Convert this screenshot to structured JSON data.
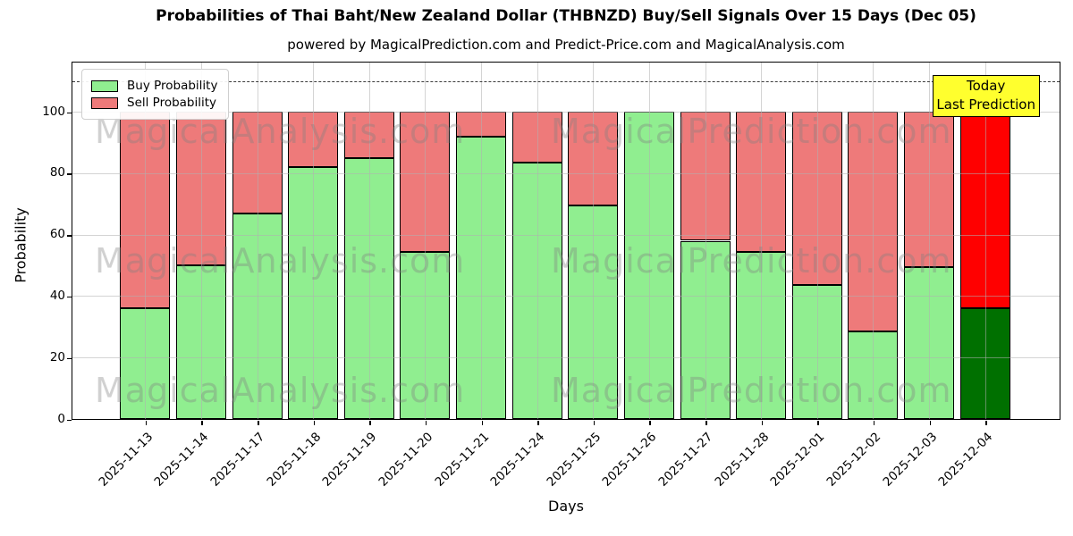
{
  "title": "Probabilities of Thai Baht/New Zealand Dollar (THBNZD) Buy/Sell Signals Over 15 Days (Dec 05)",
  "subtitle": "powered by MagicalPrediction.com and Predict-Price.com and MagicalAnalysis.com",
  "legend": {
    "buy_label": "Buy Probability",
    "sell_label": "Sell Probability"
  },
  "annotation": {
    "line1": "Today",
    "line2": "Last Prediction",
    "bg_color": "#ffff2e"
  },
  "watermarks": {
    "left": "MagicalAnalysis.com",
    "right": "MagicalPrediction.com"
  },
  "colors": {
    "buy_fill": "#90ee90",
    "sell_fill": "#ee7a7a",
    "last_buy_fill": "#007000",
    "last_sell_fill": "#ff0000",
    "bar_edge": "#000000",
    "overlap_strip": "#f59000"
  },
  "chart_data": {
    "type": "bar",
    "stacked": true,
    "title": "Probabilities of Thai Baht/New Zealand Dollar (THBNZD) Buy/Sell Signals Over 15 Days (Dec 05)",
    "xlabel": "Days",
    "ylabel": "Probability",
    "ylim": [
      0,
      116
    ],
    "yticks": [
      0,
      20,
      40,
      60,
      80,
      100
    ],
    "dashed_reference_y": 110,
    "grid": true,
    "legend_position": "upper left",
    "highlight_index": 15,
    "categories": [
      "2025-11-13",
      "2025-11-14",
      "2025-11-17",
      "2025-11-18",
      "2025-11-19",
      "2025-11-20",
      "2025-11-21",
      "2025-11-24",
      "2025-11-25",
      "2025-11-26",
      "2025-11-27",
      "2025-11-28",
      "2025-12-01",
      "2025-12-02",
      "2025-12-03",
      "2025-12-04"
    ],
    "series": [
      {
        "name": "Buy Probability",
        "values": [
          36,
          50,
          67,
          82,
          85,
          54.5,
          92,
          83.5,
          69.5,
          100,
          58,
          54.5,
          43.5,
          28.5,
          49.5,
          36
        ]
      },
      {
        "name": "Sell Probability",
        "values": [
          64,
          50,
          33,
          18,
          15,
          45.5,
          8,
          16.5,
          30.5,
          0,
          42,
          45.5,
          56.5,
          71.5,
          50.5,
          64
        ]
      }
    ]
  }
}
